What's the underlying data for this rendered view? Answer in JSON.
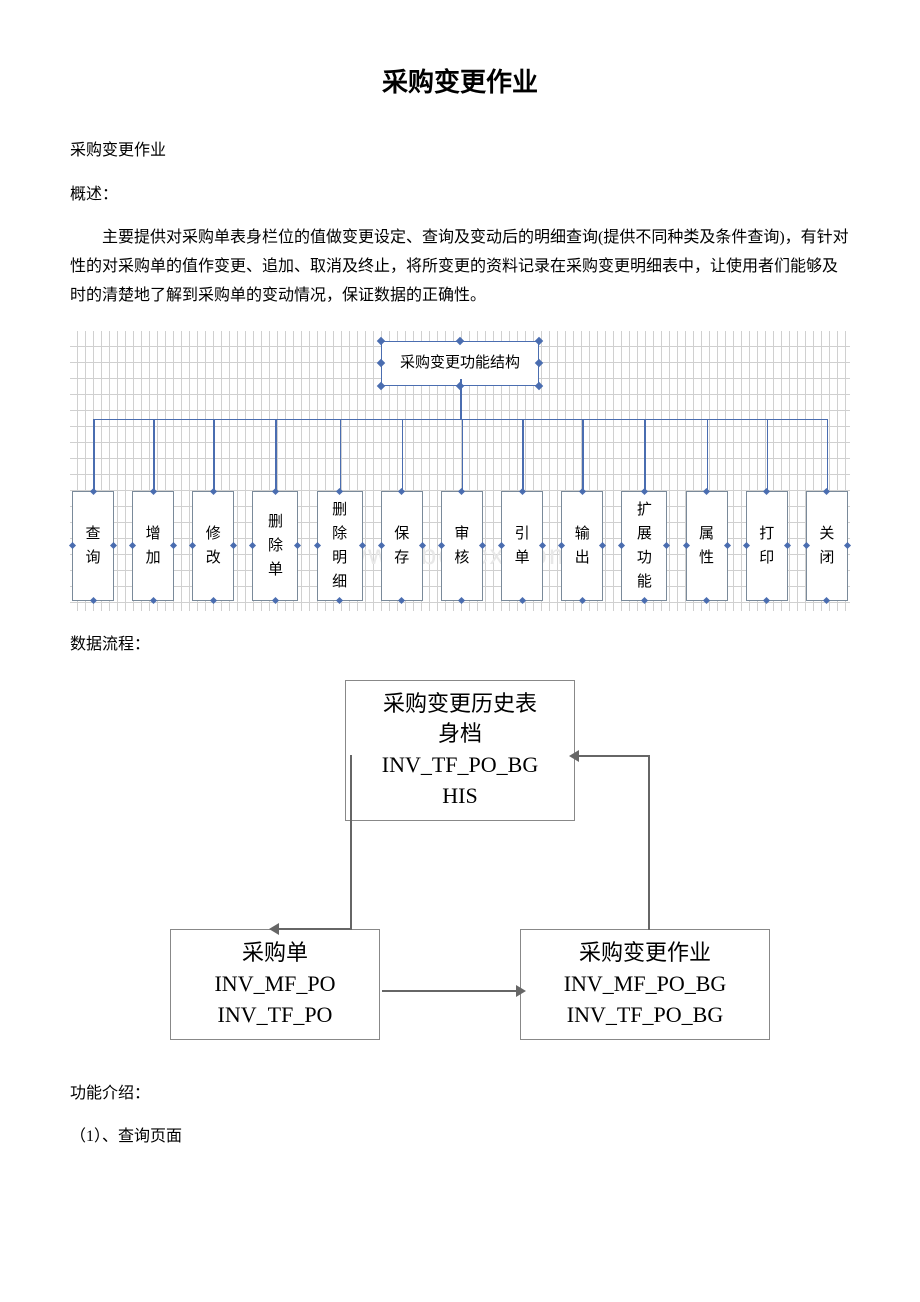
{
  "title": "采购变更作业",
  "subtitle": "采购变更作业",
  "overview_label": "概述：",
  "overview_text": "主要提供对采购单表身栏位的值做变更设定、查询及变动后的明细查询(提供不同种类及条件查询)，有针对性的对采购单的值作变更、追加、取消及终止，将所变更的资料记录在采购变更明细表中，让使用者们能够及时的清楚地了解到采购单的变动情况，保证数据的正确性。",
  "org_chart": {
    "root": "采购变更功能结构",
    "border_color": "#4a6db0",
    "node_border_color": "#7a8a9a",
    "grid_color": "#d0d0d0",
    "nodes": [
      "查询",
      "增加",
      "修改",
      "删除单",
      "删除明细",
      "保存",
      "审核",
      "引单",
      "输出",
      "扩展功能",
      "属性",
      "打印",
      "关闭"
    ],
    "watermark": "www.bdocx.com"
  },
  "flow_label": "数据流程：",
  "flow_diagram": {
    "border_color": "#888888",
    "arrow_color": "#666666",
    "top_box": {
      "line1": "采购变更历史表",
      "line2": "身档",
      "line3": "INV_TF_PO_BG",
      "line4": "HIS"
    },
    "left_box": {
      "line1": "采购单",
      "line2": "INV_MF_PO",
      "line3": "INV_TF_PO"
    },
    "right_box": {
      "line1": "采购变更作业",
      "line2": "INV_MF_PO_BG",
      "line3": "INV_TF_PO_BG"
    }
  },
  "function_label": "功能介绍：",
  "function_item1": "（1）、查询页面"
}
